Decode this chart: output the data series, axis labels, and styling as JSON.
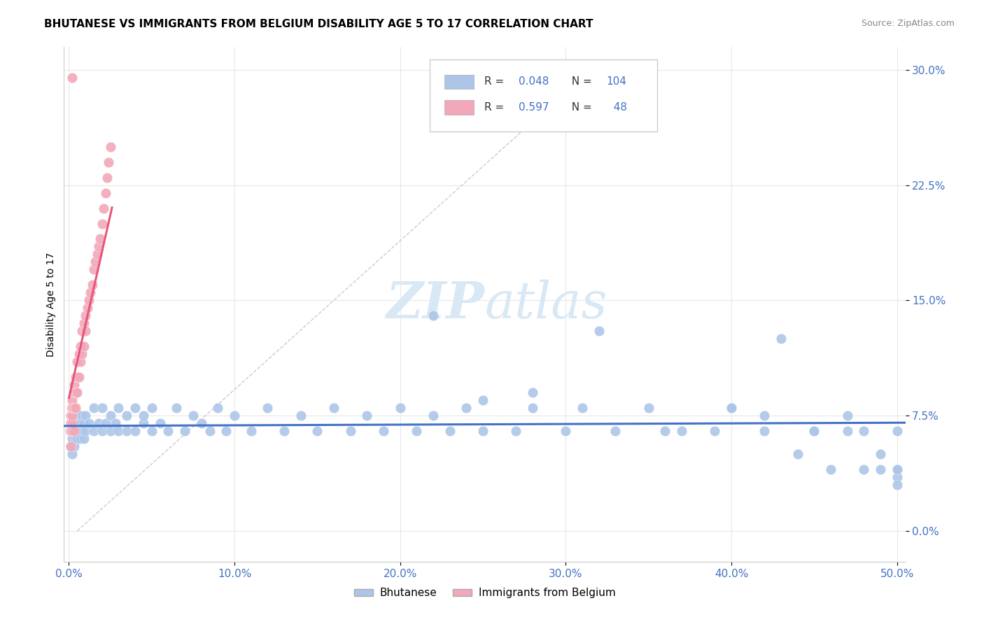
{
  "title": "BHUTANESE VS IMMIGRANTS FROM BELGIUM DISABILITY AGE 5 TO 17 CORRELATION CHART",
  "source": "Source: ZipAtlas.com",
  "ylabel_label": "Disability Age 5 to 17",
  "R_blue": 0.048,
  "N_blue": 104,
  "R_pink": 0.597,
  "N_pink": 48,
  "color_blue": "#adc6e8",
  "color_pink": "#f2a8b8",
  "color_blue_line": "#4472c4",
  "color_pink_line": "#e8557a",
  "color_grid": "#e8e8e8",
  "color_diag": "#cccccc",
  "watermark_color": "#d8e8f5",
  "blue_x": [
    0.001,
    0.001,
    0.001,
    0.002,
    0.002,
    0.002,
    0.002,
    0.003,
    0.003,
    0.003,
    0.003,
    0.004,
    0.004,
    0.004,
    0.005,
    0.005,
    0.006,
    0.006,
    0.007,
    0.007,
    0.008,
    0.008,
    0.009,
    0.009,
    0.01,
    0.01,
    0.012,
    0.015,
    0.015,
    0.018,
    0.02,
    0.02,
    0.022,
    0.025,
    0.025,
    0.028,
    0.03,
    0.03,
    0.035,
    0.035,
    0.04,
    0.04,
    0.045,
    0.045,
    0.05,
    0.05,
    0.055,
    0.06,
    0.065,
    0.07,
    0.075,
    0.08,
    0.085,
    0.09,
    0.095,
    0.1,
    0.11,
    0.12,
    0.13,
    0.14,
    0.15,
    0.16,
    0.17,
    0.18,
    0.19,
    0.2,
    0.21,
    0.22,
    0.23,
    0.24,
    0.25,
    0.27,
    0.28,
    0.3,
    0.31,
    0.33,
    0.35,
    0.37,
    0.39,
    0.4,
    0.42,
    0.44,
    0.46,
    0.47,
    0.48,
    0.49,
    0.5,
    0.5,
    0.22,
    0.25,
    0.28,
    0.32,
    0.36,
    0.4,
    0.43,
    0.45,
    0.47,
    0.48,
    0.49,
    0.5,
    0.5,
    0.5,
    0.42,
    0.45
  ],
  "blue_y": [
    0.055,
    0.065,
    0.07,
    0.05,
    0.06,
    0.065,
    0.07,
    0.055,
    0.065,
    0.07,
    0.075,
    0.06,
    0.065,
    0.07,
    0.06,
    0.07,
    0.065,
    0.075,
    0.06,
    0.07,
    0.065,
    0.075,
    0.06,
    0.07,
    0.065,
    0.075,
    0.07,
    0.065,
    0.08,
    0.07,
    0.065,
    0.08,
    0.07,
    0.065,
    0.075,
    0.07,
    0.065,
    0.08,
    0.065,
    0.075,
    0.065,
    0.08,
    0.07,
    0.075,
    0.065,
    0.08,
    0.07,
    0.065,
    0.08,
    0.065,
    0.075,
    0.07,
    0.065,
    0.08,
    0.065,
    0.075,
    0.065,
    0.08,
    0.065,
    0.075,
    0.065,
    0.08,
    0.065,
    0.075,
    0.065,
    0.08,
    0.065,
    0.075,
    0.065,
    0.08,
    0.065,
    0.065,
    0.08,
    0.065,
    0.08,
    0.065,
    0.08,
    0.065,
    0.065,
    0.08,
    0.065,
    0.05,
    0.04,
    0.065,
    0.04,
    0.05,
    0.065,
    0.04,
    0.14,
    0.085,
    0.09,
    0.13,
    0.065,
    0.08,
    0.125,
    0.065,
    0.075,
    0.065,
    0.04,
    0.035,
    0.03,
    0.04,
    0.075,
    0.065
  ],
  "pink_x": [
    0.0005,
    0.001,
    0.001,
    0.001,
    0.001,
    0.0015,
    0.0015,
    0.002,
    0.002,
    0.002,
    0.002,
    0.002,
    0.0025,
    0.003,
    0.003,
    0.003,
    0.003,
    0.004,
    0.004,
    0.004,
    0.005,
    0.005,
    0.005,
    0.006,
    0.006,
    0.007,
    0.007,
    0.008,
    0.008,
    0.009,
    0.009,
    0.01,
    0.01,
    0.011,
    0.012,
    0.013,
    0.014,
    0.015,
    0.016,
    0.017,
    0.018,
    0.019,
    0.02,
    0.021,
    0.022,
    0.023,
    0.024,
    0.025
  ],
  "pink_y": [
    0.065,
    0.055,
    0.065,
    0.07,
    0.075,
    0.065,
    0.08,
    0.065,
    0.07,
    0.075,
    0.08,
    0.085,
    0.08,
    0.065,
    0.08,
    0.09,
    0.095,
    0.08,
    0.09,
    0.1,
    0.09,
    0.1,
    0.11,
    0.1,
    0.115,
    0.11,
    0.12,
    0.115,
    0.13,
    0.12,
    0.135,
    0.13,
    0.14,
    0.145,
    0.15,
    0.155,
    0.16,
    0.17,
    0.175,
    0.18,
    0.185,
    0.19,
    0.2,
    0.21,
    0.22,
    0.23,
    0.24,
    0.25
  ],
  "pink_outlier_x": [
    0.002
  ],
  "pink_outlier_y": [
    0.295
  ],
  "xlim_lo": -0.003,
  "xlim_hi": 0.505,
  "ylim_lo": -0.02,
  "ylim_hi": 0.315,
  "xticks": [
    0.0,
    0.1,
    0.2,
    0.3,
    0.4,
    0.5
  ],
  "yticks": [
    0.0,
    0.075,
    0.15,
    0.225,
    0.3
  ]
}
